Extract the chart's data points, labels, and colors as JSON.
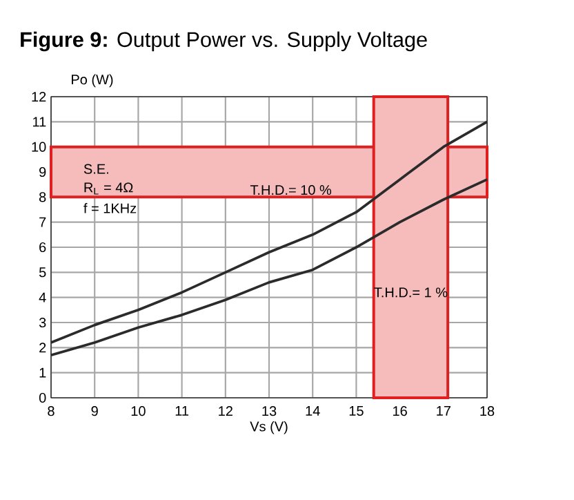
{
  "chart_data": {
    "type": "line",
    "title": "**Figure 9:** Output Power vs. Supply Voltage",
    "xlabel": "Vs (V)",
    "ylabel": "Po (W)",
    "x": [
      8,
      9,
      10,
      11,
      12,
      13,
      14,
      15,
      16,
      17,
      18
    ],
    "series": [
      {
        "color": "#2b2b2b",
        "values": [
          2.2,
          2.9,
          3.5,
          4.2,
          5.0,
          5.8,
          6.5,
          7.4,
          8.7,
          10.0,
          11.0
        ]
      },
      {
        "color": "#2b2b2b",
        "values": [
          1.7,
          2.2,
          2.8,
          3.3,
          3.9,
          4.6,
          5.1,
          6.0,
          7.0,
          7.9,
          8.7
        ]
      }
    ],
    "xlim": [
      8,
      18
    ],
    "ylim": [
      0,
      12
    ],
    "xticks": [
      8,
      9,
      10,
      11,
      12,
      13,
      14,
      15,
      16,
      17,
      18
    ],
    "yticks": [
      0,
      1,
      2,
      3,
      4,
      5,
      6,
      7,
      8,
      9,
      10,
      11,
      12
    ],
    "grid": true,
    "marker": "none",
    "line_style": "solid",
    "bands": [
      {
        "axis": "y",
        "from": 8,
        "to": 10,
        "label": "T.H.D.= 10 %",
        "color": "#e02020"
      },
      {
        "axis": "x",
        "from": 15.4,
        "to": 17.1,
        "label": "T.H.D.= 1 %",
        "color": "#e02020"
      }
    ],
    "annotations": [
      "S.E.",
      "R$_{L}$ = 4Ω",
      "f = 1KHz"
    ]
  }
}
